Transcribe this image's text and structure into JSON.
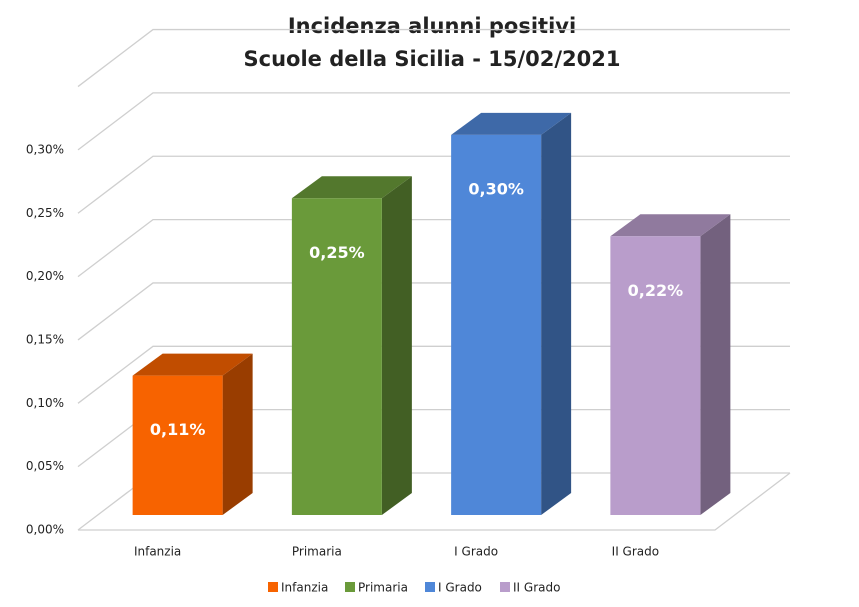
{
  "chart_data": {
    "type": "bar3d",
    "title": "Incidenza alunni positivi",
    "subtitle": "Scuole della Sicilia - 15/02/2021",
    "categories": [
      "Infanzia",
      "Primaria",
      "I Grado",
      "II Grado"
    ],
    "values": [
      0.11,
      0.25,
      0.3,
      0.22
    ],
    "value_labels": [
      "0,11%",
      "0,25%",
      "0,30%",
      "0,22%"
    ],
    "colors": [
      "#f76300",
      "#6a9a3a",
      "#4f87d8",
      "#b99dcb"
    ],
    "ylim": [
      0,
      0.35
    ],
    "yticks": [
      {
        "value": 0,
        "label": "0,00%"
      },
      {
        "value": 0.05,
        "label": "0,05%"
      },
      {
        "value": 0.1,
        "label": "0,10%"
      },
      {
        "value": 0.15,
        "label": "0,15%"
      },
      {
        "value": 0.2,
        "label": "0,20%"
      },
      {
        "value": 0.25,
        "label": "0,25%"
      },
      {
        "value": 0.3,
        "label": "0,30%"
      }
    ],
    "grid": true,
    "legend": "bottom"
  }
}
